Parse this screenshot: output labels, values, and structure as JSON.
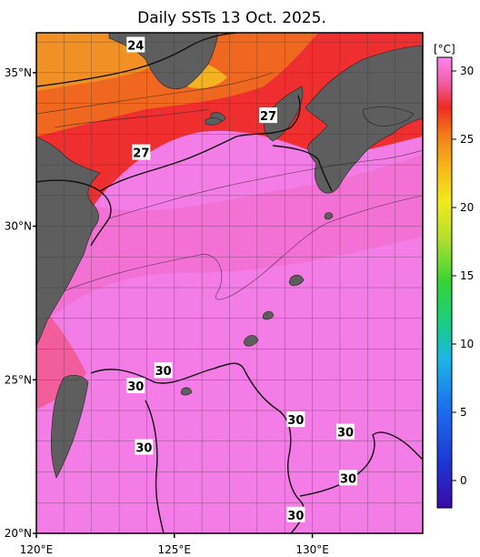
{
  "title": "Daily SSTs 13 Oct. 2025.",
  "colorbar": {
    "unit": "[°C]",
    "ticks": [
      "30",
      "25",
      "20",
      "15",
      "10",
      "5",
      "0"
    ],
    "value_range": [
      -2,
      31
    ]
  },
  "axes": {
    "lon_labels": [
      "120°E",
      "125°E",
      "130°E"
    ],
    "lat_labels": [
      "35°N",
      "30°N",
      "25°N",
      "20°N"
    ],
    "lon_range": [
      120,
      134
    ],
    "lat_range": [
      20,
      36.3
    ]
  },
  "contour_labels": [
    {
      "text": "24",
      "lon": 123.6,
      "lat": 35.9
    },
    {
      "text": "27",
      "lon": 123.8,
      "lat": 32.4
    },
    {
      "text": "27",
      "lon": 128.4,
      "lat": 33.6
    },
    {
      "text": "30",
      "lon": 124.6,
      "lat": 25.3
    },
    {
      "text": "30",
      "lon": 123.6,
      "lat": 24.8
    },
    {
      "text": "30",
      "lon": 123.9,
      "lat": 22.8
    },
    {
      "text": "30",
      "lon": 129.4,
      "lat": 23.7
    },
    {
      "text": "30",
      "lon": 131.2,
      "lat": 23.3
    },
    {
      "text": "30",
      "lon": 131.3,
      "lat": 21.8
    },
    {
      "text": "30",
      "lon": 129.4,
      "lat": 20.6
    }
  ]
}
